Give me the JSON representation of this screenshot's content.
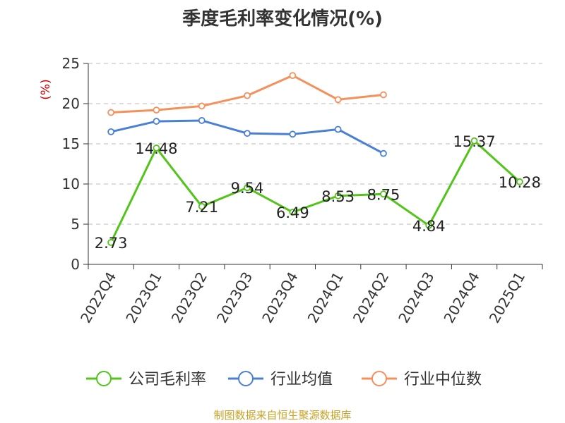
{
  "page": {
    "title": "季度毛利率变化情况(%)",
    "source_note": "制图数据来自恒生聚源数据库",
    "source_color": "#c9a227"
  },
  "chart_data": {
    "type": "line",
    "title": "季度毛利率变化情况(%)",
    "ylabel": "(%)",
    "ylabel_color": "#cc0000",
    "xlabel": "",
    "ylim": [
      0,
      25
    ],
    "yticks": [
      0,
      5,
      10,
      15,
      20,
      25
    ],
    "categories": [
      "2022Q4",
      "2023Q1",
      "2023Q2",
      "2023Q3",
      "2023Q4",
      "2024Q1",
      "2024Q2",
      "2024Q3",
      "2024Q4",
      "2025Q1"
    ],
    "grid": true,
    "legend_position": "bottom",
    "series": [
      {
        "name": "公司毛利率",
        "color": "#52c41a",
        "values": [
          2.73,
          14.48,
          7.21,
          9.54,
          6.49,
          8.53,
          8.75,
          4.84,
          15.37,
          10.28
        ],
        "labels": [
          "2.73",
          "14.48",
          "7.21",
          "9.54",
          "6.49",
          "8.53",
          "8.75",
          "4.84",
          "15.37",
          "10.28"
        ]
      },
      {
        "name": "行业均值",
        "color": "#4a7fd6",
        "values": [
          16.5,
          17.8,
          17.9,
          16.3,
          16.2,
          16.8,
          13.8,
          null,
          null,
          null
        ]
      },
      {
        "name": "行业中位数",
        "color": "#f5905b",
        "values": [
          18.9,
          19.2,
          19.7,
          21.0,
          23.5,
          20.5,
          21.1,
          null,
          null,
          null
        ]
      }
    ]
  }
}
